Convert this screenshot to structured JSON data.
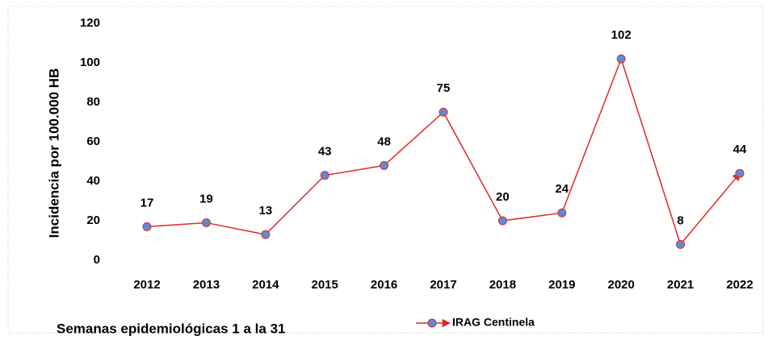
{
  "chart_data": {
    "type": "line",
    "y_label": "Incidencia por 100.000 HB",
    "x_label": "Semanas epidemiológicas 1 a la 31",
    "categories": [
      "2012",
      "2013",
      "2014",
      "2015",
      "2016",
      "2017",
      "2018",
      "2019",
      "2020",
      "2021",
      "2022"
    ],
    "series": [
      {
        "name": "IRAG Centinela",
        "color": "#e02828",
        "marker_color": "#5b8bd6",
        "values": [
          17,
          19,
          13,
          43,
          48,
          75,
          20,
          24,
          102,
          8,
          44
        ]
      }
    ],
    "ylim": [
      0,
      120
    ],
    "yticks": [
      0,
      20,
      40,
      60,
      80,
      100,
      120
    ],
    "grid": false
  }
}
